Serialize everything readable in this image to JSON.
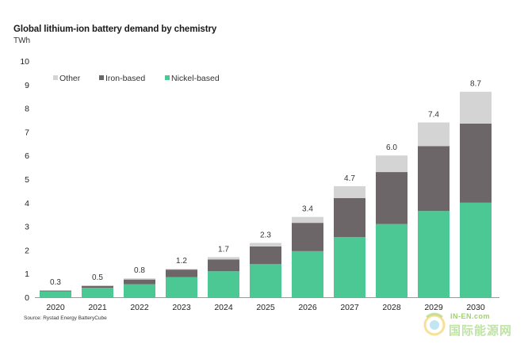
{
  "title": "Global lithium-ion battery demand by chemistry",
  "unit": "TWh",
  "source": "Source: Rystad Energy BatteryCube",
  "watermark": {
    "top": "IN-EN.com",
    "bottom": "国际能源网"
  },
  "colors": {
    "other": "#d4d4d4",
    "iron": "#6d6668",
    "nickel": "#4cc895"
  },
  "chart_data": {
    "type": "bar",
    "stacked": true,
    "categories": [
      "2020",
      "2021",
      "2022",
      "2023",
      "2024",
      "2025",
      "2026",
      "2027",
      "2028",
      "2029",
      "2030"
    ],
    "series": [
      {
        "name": "Nickel-based",
        "key": "nickel",
        "values": [
          0.25,
          0.4,
          0.55,
          0.85,
          1.1,
          1.4,
          1.95,
          2.55,
          3.1,
          3.65,
          4.0
        ]
      },
      {
        "name": "Iron-based",
        "key": "iron",
        "values": [
          0.03,
          0.08,
          0.2,
          0.32,
          0.5,
          0.75,
          1.2,
          1.65,
          2.2,
          2.75,
          3.35
        ]
      },
      {
        "name": "Other",
        "key": "other",
        "values": [
          0.02,
          0.02,
          0.05,
          0.03,
          0.1,
          0.15,
          0.25,
          0.5,
          0.7,
          1.0,
          1.35
        ]
      }
    ],
    "totals": [
      "0.3",
      "0.5",
      "0.8",
      "1.2",
      "1.7",
      "2.3",
      "3.4",
      "4.7",
      "6.0",
      "7.4",
      "8.7"
    ],
    "ylim": [
      0,
      10
    ],
    "yticks": [
      "0",
      "1",
      "2",
      "3",
      "4",
      "5",
      "6",
      "7",
      "8",
      "9",
      "10"
    ],
    "legend": [
      {
        "label": "Other",
        "key": "other"
      },
      {
        "label": "Iron-based",
        "key": "iron"
      },
      {
        "label": "Nickel-based",
        "key": "nickel"
      }
    ],
    "legend_position": "top-left",
    "grid": false
  }
}
